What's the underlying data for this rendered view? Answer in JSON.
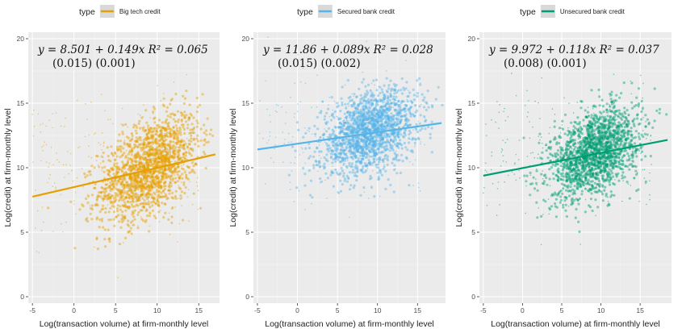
{
  "chart_data": [
    {
      "type": "scatter",
      "legend_title": "type",
      "legend_label": "Big tech credit",
      "color": "#E69F00",
      "xlabel": "Log(transaction volume) at firm-monthly level",
      "ylabel": "Log(credit) at firm-monthly level",
      "xlim": [
        -5.5,
        17.5
      ],
      "ylim": [
        -0.5,
        20.5
      ],
      "xticks": [
        "-5",
        "0",
        "5",
        "10",
        "15"
      ],
      "yticks": [
        "0",
        "5",
        "10",
        "15",
        "20"
      ],
      "grid": true,
      "legend_position": "top",
      "fit_line": {
        "intercept": 8.501,
        "slope": 0.149,
        "x_range": [
          -5,
          17
        ]
      },
      "equation_line1": "y = 8.501 + 0.149x   R² = 0.065",
      "equation_line2": "(0.015)   (0.001)",
      "cloud": {
        "x_center": 9,
        "x_spread": 3,
        "y_center": 10,
        "y_spread": 1.8
      }
    },
    {
      "type": "scatter",
      "legend_title": "type",
      "legend_label": "Secured bank credit",
      "color": "#56B4E9",
      "xlabel": "Log(transaction volume) at firm-monthly level",
      "ylabel": "Log(credit) at firm-monthly level",
      "xlim": [
        -5.5,
        18.5
      ],
      "ylim": [
        -0.5,
        20.5
      ],
      "xticks": [
        "-5",
        "0",
        "5",
        "10",
        "15"
      ],
      "yticks": [
        "0",
        "5",
        "10",
        "15",
        "20"
      ],
      "grid": true,
      "legend_position": "top",
      "fit_line": {
        "intercept": 11.86,
        "slope": 0.089,
        "x_range": [
          -5,
          18
        ]
      },
      "equation_line1": "y = 11.86 + 0.089x   R² = 0.028",
      "equation_line2": "(0.015)   (0.002)",
      "cloud": {
        "x_center": 9,
        "x_spread": 3,
        "y_center": 12.8,
        "y_spread": 1.5
      }
    },
    {
      "type": "scatter",
      "legend_title": "type",
      "legend_label": "Unsecured bank credit",
      "color": "#009E73",
      "xlabel": "Log(transaction volume) at firm-monthly level",
      "ylabel": "Log(credit) at firm-monthly level",
      "xlim": [
        -5.5,
        19
      ],
      "ylim": [
        -0.5,
        20.5
      ],
      "xticks": [
        "-5",
        "0",
        "5",
        "10",
        "15"
      ],
      "yticks": [
        "0",
        "5",
        "10",
        "15",
        "20"
      ],
      "grid": true,
      "legend_position": "top",
      "fit_line": {
        "intercept": 9.972,
        "slope": 0.118,
        "x_range": [
          -5,
          18.5
        ]
      },
      "equation_line1": "y = 9.972 + 0.118x   R² = 0.037",
      "equation_line2": "(0.008)   (0.001)",
      "cloud": {
        "x_center": 9.2,
        "x_spread": 2.8,
        "y_center": 11.2,
        "y_spread": 1.6
      }
    }
  ]
}
